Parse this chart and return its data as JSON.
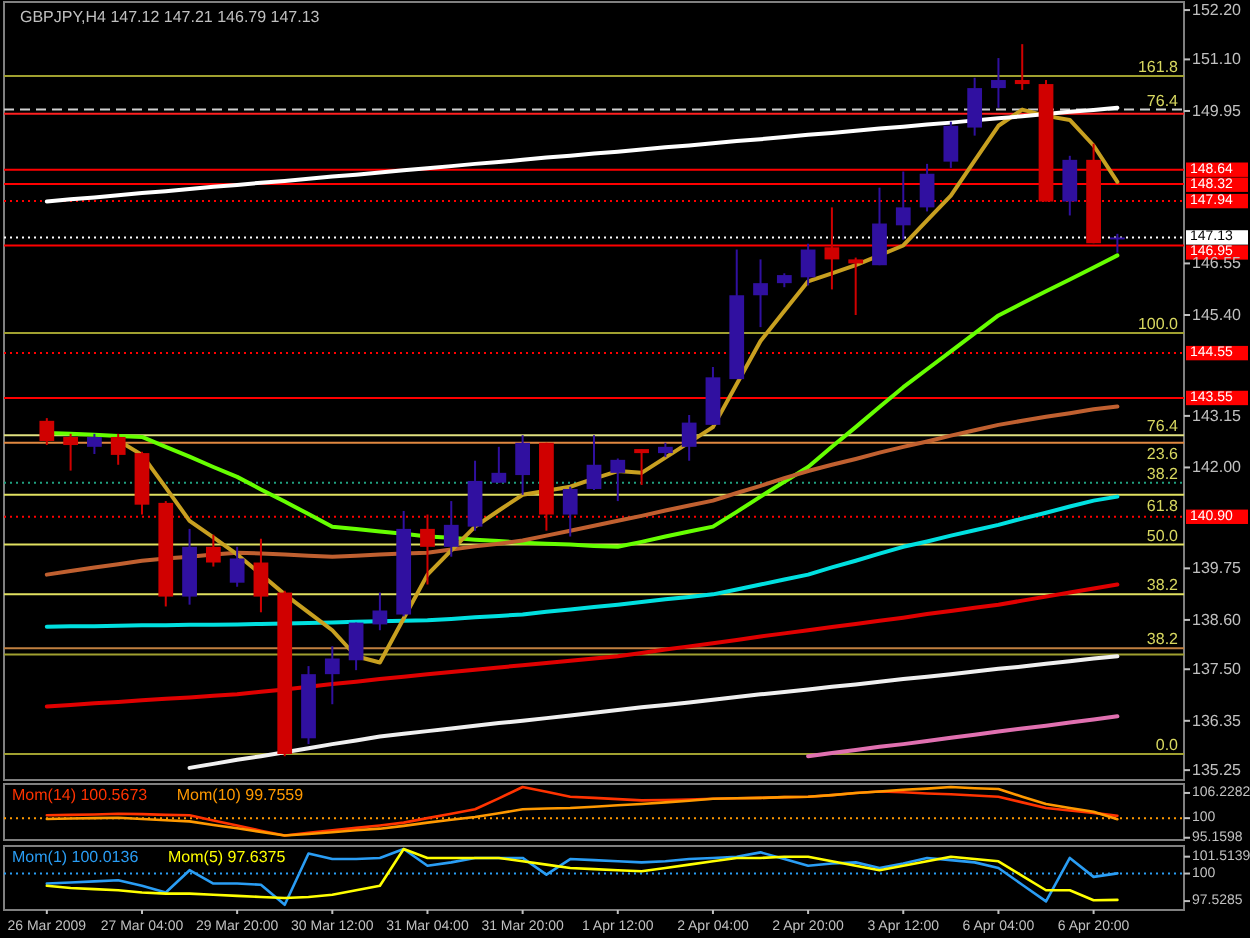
{
  "chart_data": [
    {
      "type": "candlestick",
      "title": "GBPJPY,H4 147.12 147.21 146.79 147.13",
      "tick_labels": "y",
      "categories": [
        null,
        null,
        null,
        null,
        null,
        null,
        null,
        null,
        null,
        null,
        null,
        null,
        null,
        null,
        null,
        null,
        null,
        null,
        null,
        null,
        null,
        null,
        null,
        null,
        null,
        null,
        null,
        null,
        null,
        null,
        null,
        null,
        null,
        null,
        null,
        null,
        null,
        null,
        null,
        null,
        null,
        null,
        null,
        null,
        null,
        null
      ],
      "ohlc": [
        [
          143.04,
          143.1,
          142.5,
          142.59
        ],
        [
          142.68,
          142.75,
          141.93,
          142.5
        ],
        [
          142.46,
          142.75,
          142.3,
          142.68
        ],
        [
          142.68,
          142.75,
          142.06,
          142.28
        ],
        [
          142.32,
          142.35,
          140.95,
          141.17
        ],
        [
          141.21,
          141.25,
          138.9,
          139.12
        ],
        [
          139.12,
          140.63,
          138.94,
          140.23
        ],
        [
          140.23,
          140.5,
          139.79,
          139.88
        ],
        [
          139.43,
          140.23,
          139.34,
          139.97
        ],
        [
          139.88,
          140.41,
          138.77,
          139.12
        ],
        [
          139.21,
          139.25,
          135.56,
          135.61
        ],
        [
          135.96,
          137.57,
          135.83,
          137.39
        ],
        [
          137.39,
          138.01,
          136.72,
          137.74
        ],
        [
          137.7,
          138.54,
          137.48,
          138.54
        ],
        [
          138.5,
          139.21,
          138.37,
          138.81
        ],
        [
          138.72,
          141.03,
          138.68,
          140.63
        ],
        [
          140.63,
          140.95,
          139.39,
          140.23
        ],
        [
          140.23,
          141.25,
          140.01,
          140.72
        ],
        [
          140.68,
          142.15,
          140.59,
          141.7
        ],
        [
          141.66,
          142.46,
          141.66,
          141.88
        ],
        [
          141.83,
          142.72,
          141.39,
          142.55
        ],
        [
          142.55,
          142.55,
          140.59,
          140.95
        ],
        [
          140.95,
          141.57,
          140.46,
          141.52
        ],
        [
          141.52,
          142.72,
          141.5,
          142.06
        ],
        [
          141.88,
          142.2,
          141.25,
          142.17
        ],
        [
          142.41,
          142.41,
          141.61,
          142.32
        ],
        [
          142.32,
          142.55,
          142.23,
          142.46
        ],
        [
          142.46,
          143.17,
          142.15,
          143.0
        ],
        [
          142.95,
          144.24,
          142.95,
          144.01
        ],
        [
          143.97,
          146.86,
          143.97,
          145.84
        ],
        [
          145.84,
          146.64,
          145.13,
          146.11
        ],
        [
          146.11,
          146.33,
          146.02,
          146.29
        ],
        [
          146.24,
          146.99,
          146.06,
          146.86
        ],
        [
          146.91,
          147.8,
          145.97,
          146.64
        ],
        [
          146.64,
          146.68,
          145.4,
          146.55
        ],
        [
          146.51,
          148.24,
          146.51,
          147.44
        ],
        [
          147.4,
          148.6,
          147.08,
          147.8
        ],
        [
          147.8,
          148.77,
          147.71,
          148.55
        ],
        [
          148.82,
          149.71,
          148.68,
          149.62
        ],
        [
          149.58,
          150.69,
          149.4,
          150.46
        ],
        [
          150.46,
          151.13,
          150.02,
          150.64
        ],
        [
          150.64,
          151.44,
          150.42,
          150.55
        ],
        [
          150.55,
          150.64,
          147.93,
          147.93
        ],
        [
          147.93,
          148.95,
          147.62,
          148.86
        ],
        [
          148.86,
          149.22,
          147.0,
          147.0
        ],
        [
          147.12,
          147.21,
          146.79,
          147.13
        ]
      ],
      "colors": [
        "#d00000",
        "#d00000",
        "#3010a0",
        "#d00000",
        "#d00000",
        "#d00000",
        "#3010a0",
        "#d00000",
        "#3010a0",
        "#d00000",
        "#d00000",
        "#3010a0",
        "#3010a0",
        "#3010a0",
        "#3010a0",
        "#3010a0",
        "#d00000",
        "#3010a0",
        "#3010a0",
        "#3010a0",
        "#3010a0",
        "#d00000",
        "#3010a0",
        "#3010a0",
        "#3010a0",
        "#d00000",
        "#3010a0",
        "#3010a0",
        "#3010a0",
        "#3010a0",
        "#3010a0",
        "#3010a0",
        "#3010a0",
        "#d00000",
        "#d00000",
        "#3010a0",
        "#3010a0",
        "#3010a0",
        "#3010a0",
        "#3010a0",
        "#3010a0",
        "#d00000",
        "#d00000",
        "#3010a0",
        "#d00000",
        "#3010a0"
      ],
      "series": [
        {
          "type": "line",
          "color": "#66ff00",
          "values": [
            142.77,
            142.75,
            142.73,
            142.7,
            142.68,
            142.46,
            142.24,
            142.01,
            141.79,
            141.51,
            141.24,
            140.96,
            140.68,
            140.63,
            140.57,
            140.52,
            140.46,
            140.43,
            140.39,
            140.36,
            140.32,
            140.3,
            140.28,
            140.25,
            140.23,
            140.34,
            140.46,
            140.57,
            140.68,
            141.01,
            141.35,
            141.68,
            142.01,
            142.46,
            142.9,
            143.35,
            143.79,
            144.19,
            144.59,
            144.99,
            145.39,
            145.66,
            145.93,
            146.19,
            146.46,
            146.73
          ]
        },
        {
          "type": "line",
          "color": "#00e0e0",
          "values": [
            138.45,
            138.46,
            138.46,
            138.47,
            138.48,
            138.48,
            138.49,
            138.49,
            138.5,
            138.51,
            138.52,
            138.53,
            138.54,
            138.56,
            138.57,
            138.58,
            138.59,
            138.62,
            138.66,
            138.69,
            138.72,
            138.78,
            138.83,
            138.89,
            138.94,
            139.0,
            139.06,
            139.11,
            139.17,
            139.28,
            139.39,
            139.5,
            139.61,
            139.77,
            139.92,
            140.08,
            140.23,
            140.35,
            140.48,
            140.6,
            140.72,
            140.86,
            140.99,
            141.13,
            141.26,
            141.35
          ]
        },
        {
          "type": "line",
          "color": "#e00000",
          "values": [
            136.67,
            136.7,
            136.74,
            136.77,
            136.81,
            136.84,
            136.87,
            136.91,
            136.94,
            137.0,
            137.05,
            137.11,
            137.17,
            137.22,
            137.28,
            137.33,
            137.39,
            137.44,
            137.49,
            137.54,
            137.59,
            137.64,
            137.69,
            137.74,
            137.79,
            137.86,
            137.94,
            138.01,
            138.08,
            138.15,
            138.23,
            138.3,
            138.37,
            138.44,
            138.51,
            138.58,
            138.65,
            138.73,
            138.8,
            138.87,
            138.94,
            139.03,
            139.12,
            139.21,
            139.3,
            139.39
          ]
        },
        {
          "type": "line",
          "color": "#c06030",
          "values": [
            139.61,
            139.69,
            139.77,
            139.84,
            139.92,
            139.97,
            140.01,
            140.06,
            140.1,
            140.08,
            140.06,
            140.03,
            140.01,
            140.03,
            140.06,
            140.08,
            140.1,
            140.17,
            140.24,
            140.3,
            140.37,
            140.48,
            140.59,
            140.7,
            140.81,
            140.92,
            141.04,
            141.15,
            141.26,
            141.43,
            141.59,
            141.76,
            141.92,
            142.06,
            142.19,
            142.33,
            142.46,
            142.58,
            142.71,
            142.83,
            142.95,
            143.04,
            143.13,
            143.21,
            143.3,
            143.36
          ]
        },
        {
          "type": "line",
          "color": "#c8a020",
          "values": [
            null,
            null,
            null,
            142.6,
            142.28,
            141.55,
            140.81,
            140.44,
            140.06,
            139.62,
            139.17,
            138.77,
            138.37,
            137.79,
            137.65,
            138.63,
            139.61,
            140.15,
            140.68,
            141.04,
            141.39,
            141.48,
            141.57,
            141.75,
            141.92,
            141.88,
            142.22,
            142.56,
            142.9,
            143.86,
            144.82,
            145.49,
            146.15,
            146.33,
            146.51,
            146.73,
            146.95,
            147.51,
            148.06,
            148.84,
            149.62,
            149.98,
            149.84,
            149.75,
            149.18,
            148.37
          ]
        },
        {
          "type": "line",
          "color": "#ffffff",
          "values": [
            147.93,
            147.98,
            148.02,
            148.07,
            148.12,
            148.16,
            148.21,
            148.26,
            148.3,
            148.35,
            148.39,
            148.44,
            148.49,
            148.53,
            148.58,
            148.63,
            148.67,
            148.72,
            148.77,
            148.81,
            148.86,
            148.91,
            148.95,
            149.0,
            149.04,
            149.09,
            149.14,
            149.18,
            149.23,
            149.28,
            149.32,
            149.37,
            149.42,
            149.46,
            149.51,
            149.56,
            149.6,
            149.65,
            149.69,
            149.74,
            149.79,
            149.83,
            149.88,
            149.93,
            149.97,
            150.02
          ]
        },
        {
          "type": "line",
          "color": "#f0f0f0",
          "values": [
            null,
            null,
            null,
            null,
            null,
            null,
            135.3,
            135.39,
            135.48,
            135.56,
            135.65,
            135.74,
            135.83,
            135.91,
            136.0,
            136.06,
            136.12,
            136.18,
            136.24,
            136.3,
            136.35,
            136.41,
            136.47,
            136.53,
            136.59,
            136.65,
            136.7,
            136.76,
            136.82,
            136.88,
            136.94,
            136.99,
            137.05,
            137.11,
            137.16,
            137.22,
            137.28,
            137.33,
            137.39,
            137.45,
            137.51,
            137.56,
            137.62,
            137.68,
            137.74,
            137.79
          ]
        },
        {
          "type": "line",
          "color": "#e070b0",
          "values": [
            null,
            null,
            null,
            null,
            null,
            null,
            null,
            null,
            null,
            null,
            null,
            null,
            null,
            null,
            null,
            null,
            null,
            null,
            null,
            null,
            null,
            null,
            null,
            null,
            null,
            null,
            null,
            null,
            null,
            null,
            null,
            null,
            135.56,
            135.63,
            135.7,
            135.77,
            135.83,
            135.9,
            135.97,
            136.04,
            136.11,
            136.18,
            136.24,
            136.31,
            136.38,
            136.45
          ]
        }
      ],
      "ylim": [
        135.03,
        152.38
      ],
      "yticks": [
        {
          "value": 152.2,
          "label": "152.20"
        },
        {
          "value": 151.1,
          "label": "151.10"
        },
        {
          "value": 149.95,
          "label": "149.95"
        },
        {
          "value": 146.55,
          "label": "146.55"
        },
        {
          "value": 145.4,
          "label": "145.40"
        },
        {
          "value": 143.15,
          "label": "143.15"
        },
        {
          "value": 142.0,
          "label": "142.00"
        },
        {
          "value": 139.75,
          "label": "139.75"
        },
        {
          "value": 138.6,
          "label": "138.60"
        },
        {
          "value": 137.5,
          "label": "137.50"
        },
        {
          "value": 136.35,
          "label": "136.35"
        },
        {
          "value": 135.25,
          "label": "135.25"
        }
      ],
      "ref_lines": [
        {
          "axis": "y",
          "value": 150.73,
          "color": "#a0a030",
          "line_style": "solid"
        },
        {
          "axis": "y",
          "value": 149.98,
          "color": "#d0d0d0",
          "line_style": "dashed"
        },
        {
          "axis": "y",
          "value": 149.89,
          "color": "#ff2020",
          "line_style": "solid"
        },
        {
          "axis": "y",
          "value": 148.64,
          "label": "148.64",
          "color": "#ff0000",
          "line_style": "solid"
        },
        {
          "axis": "y",
          "value": 148.32,
          "label": "148.32",
          "color": "#ff0000",
          "line_style": "solid"
        },
        {
          "axis": "y",
          "value": 147.94,
          "label": "147.94",
          "color": "#ff0000",
          "line_style": "dotted"
        },
        {
          "axis": "y",
          "value": 147.13,
          "label": "147.13",
          "color": "#ffffff",
          "line_style": "dotted"
        },
        {
          "axis": "y",
          "value": 146.95,
          "label": "146.95",
          "color": "#ff0000",
          "line_style": "solid"
        },
        {
          "axis": "y",
          "value": 145.0,
          "color": "#a0a030",
          "line_style": "solid"
        },
        {
          "axis": "y",
          "value": 144.55,
          "label": "144.55",
          "color": "#ff0000",
          "line_style": "dotted"
        },
        {
          "axis": "y",
          "value": 143.55,
          "label": "143.55",
          "color": "#ff0000",
          "line_style": "solid"
        },
        {
          "axis": "y",
          "value": 142.72,
          "color": "#e0e080",
          "line_style": "solid"
        },
        {
          "axis": "y",
          "value": 142.55,
          "color": "#e08840",
          "line_style": "solid"
        },
        {
          "axis": "y",
          "value": 141.66,
          "color": "#20a080",
          "line_style": "dotted"
        },
        {
          "axis": "y",
          "value": 141.39,
          "color": "#e0e060",
          "line_style": "solid"
        },
        {
          "axis": "y",
          "value": 140.9,
          "label": "140.90",
          "color": "#ff0000",
          "line_style": "dotted"
        },
        {
          "axis": "y",
          "value": 140.28,
          "color": "#e0e060",
          "line_style": "solid"
        },
        {
          "axis": "y",
          "value": 139.17,
          "color": "#e0e060",
          "line_style": "solid"
        },
        {
          "axis": "y",
          "value": 137.97,
          "color": "#c08040",
          "line_style": "solid"
        },
        {
          "axis": "y",
          "value": 137.83,
          "color": "#a0a030",
          "line_style": "solid"
        },
        {
          "axis": "y",
          "value": 135.61,
          "color": "#a0a030",
          "line_style": "solid"
        }
      ],
      "annotations": [
        {
          "text": "161.8",
          "y": 150.73
        },
        {
          "text": "76.4",
          "y": 149.98
        },
        {
          "text": "100.0",
          "y": 145.0
        },
        {
          "text": "76.4",
          "y": 142.72
        },
        {
          "text": "23.6",
          "y": 142.55
        },
        {
          "text": "38.2",
          "y": 141.66
        },
        {
          "text": "61.8",
          "y": 141.39
        },
        {
          "text": "50.0",
          "y": 140.28
        },
        {
          "text": "38.2",
          "y": 139.17
        },
        {
          "text": "38.2",
          "y": 137.97
        },
        {
          "text": "0.0",
          "y": 135.61
        }
      ]
    },
    {
      "type": "line",
      "tick_labels": "y",
      "legend": "top left",
      "categories": [
        null,
        null,
        null,
        null,
        null,
        null,
        null,
        null,
        null,
        null,
        null,
        null,
        null,
        null,
        null,
        null,
        null,
        null,
        null,
        null,
        null,
        null,
        null,
        null,
        null,
        null,
        null,
        null,
        null,
        null,
        null,
        null,
        null,
        null,
        null,
        null,
        null,
        null,
        null,
        null,
        null,
        null,
        null,
        null,
        null,
        null
      ],
      "series": [
        {
          "name": "Mom(14) 100.5673",
          "color": "#ff3300",
          "values": [
            100.7,
            100.8,
            100.9,
            101.1,
            101.0,
            100.8,
            100.7,
            99.4,
            98.2,
            96.9,
            95.7,
            96.4,
            97.0,
            97.6,
            98.2,
            98.9,
            100.0,
            101.1,
            102.2,
            104.9,
            107.7,
            106.5,
            105.3,
            105.0,
            104.7,
            104.4,
            104.5,
            104.6,
            104.8,
            104.9,
            105.0,
            105.2,
            105.3,
            105.7,
            106.2,
            106.6,
            106.4,
            106.1,
            105.9,
            105.6,
            105.3,
            103.9,
            102.5,
            101.9,
            101.3,
            100.5673
          ]
        },
        {
          "name": "Mom(10) 99.7559",
          "color": "#ff9900",
          "values": [
            99.8,
            99.9,
            100.0,
            100.1,
            99.8,
            99.5,
            99.2,
            98.3,
            97.5,
            96.6,
            95.7,
            96.1,
            96.5,
            97.0,
            97.4,
            98.1,
            98.9,
            99.6,
            100.3,
            101.2,
            102.2,
            102.4,
            102.5,
            102.8,
            103.2,
            103.5,
            103.9,
            104.3,
            104.8,
            104.9,
            105.0,
            105.2,
            105.3,
            105.7,
            106.2,
            106.6,
            107.0,
            107.3,
            107.7,
            107.4,
            107.2,
            105.3,
            103.5,
            102.5,
            101.6,
            99.7559
          ]
        }
      ],
      "ylim": [
        94.6,
        108.44
      ],
      "yticks": [
        106.2282,
        100,
        95.1598
      ],
      "ref_lines": [
        {
          "axis": "y",
          "value": 100,
          "color": "#ff9900",
          "line_style": "dotted"
        }
      ]
    },
    {
      "type": "line",
      "legend": "top left",
      "categories": [
        "26 Mar 2009",
        null,
        null,
        null,
        "27 Mar 04:00",
        null,
        null,
        null,
        "29 Mar 20:00",
        null,
        null,
        null,
        "30 Mar 12:00",
        null,
        null,
        null,
        "31 Mar 04:00",
        null,
        null,
        null,
        "31 Mar 20:00",
        null,
        null,
        null,
        "1 Apr 12:00",
        null,
        null,
        null,
        "2 Apr 04:00",
        null,
        null,
        null,
        "2 Apr 20:00",
        null,
        null,
        null,
        "3 Apr 12:00",
        null,
        null,
        null,
        "6 Apr 04:00",
        null,
        null,
        null,
        "6 Apr 20:00",
        null
      ],
      "series": [
        {
          "name": "Mom(1) 100.0136",
          "color": "#2a9df4",
          "values": [
            99.1,
            99.2,
            99.3,
            99.4,
            98.9,
            98.3,
            100.3,
            99.1,
            99.1,
            99.0,
            97.2,
            101.8,
            101.3,
            101.3,
            101.4,
            102.2,
            100.7,
            101.0,
            101.4,
            101.4,
            101.4,
            99.9,
            101.3,
            101.2,
            101.1,
            101.0,
            101.1,
            101.3,
            101.4,
            101.5,
            101.9,
            101.3,
            100.7,
            100.9,
            101.0,
            100.5,
            100.9,
            101.4,
            101.2,
            101.0,
            100.5,
            99.0,
            97.5,
            101.4,
            99.7,
            100.0136
          ]
        },
        {
          "name": "Mom(5) 97.6375",
          "color": "#ffff00",
          "values": [
            98.9,
            98.7,
            98.6,
            98.5,
            98.3,
            98.2,
            98.2,
            98.1,
            98.0,
            97.9,
            97.8,
            97.9,
            98.1,
            98.5,
            98.9,
            102.2,
            101.4,
            101.4,
            101.4,
            101.4,
            101.1,
            100.8,
            100.5,
            100.4,
            100.3,
            100.2,
            100.5,
            100.8,
            101.1,
            101.4,
            101.4,
            101.5,
            101.5,
            101.1,
            100.7,
            100.3,
            100.7,
            101.1,
            101.5,
            101.3,
            101.1,
            99.8,
            98.5,
            98.5,
            97.6,
            97.6375
          ]
        }
      ],
      "ylim": [
        96.73,
        102.47
      ],
      "yticks": [
        101.5139,
        100,
        97.5285
      ],
      "ref_lines": [
        {
          "axis": "y",
          "value": 100,
          "color": "#2a9df4",
          "line_style": "dotted"
        }
      ]
    }
  ]
}
